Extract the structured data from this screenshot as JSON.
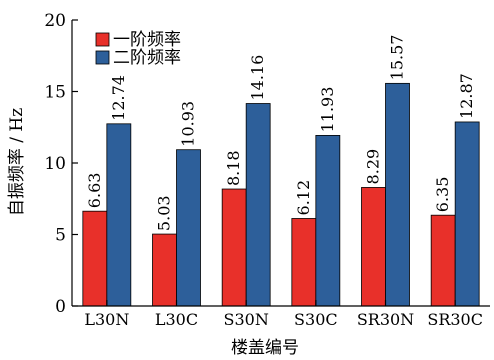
{
  "chart_data": {
    "type": "bar",
    "title": "",
    "xlabel": "楼盖编号",
    "ylabel": "自振频率 / Hz",
    "ylim": [
      0,
      20
    ],
    "yticks": [
      0,
      5,
      10,
      15,
      20
    ],
    "categories": [
      "L30N",
      "L30C",
      "S30N",
      "S30C",
      "SR30N",
      "SR30C"
    ],
    "series": [
      {
        "name": "一阶频率",
        "color": "#e8302a",
        "values": [
          6.63,
          5.03,
          8.18,
          6.12,
          8.29,
          6.35
        ]
      },
      {
        "name": "二阶频率",
        "color": "#2d5f9a",
        "values": [
          12.74,
          10.93,
          14.16,
          11.93,
          15.57,
          12.87
        ]
      }
    ],
    "legend_position": "top-left",
    "grid": false
  }
}
